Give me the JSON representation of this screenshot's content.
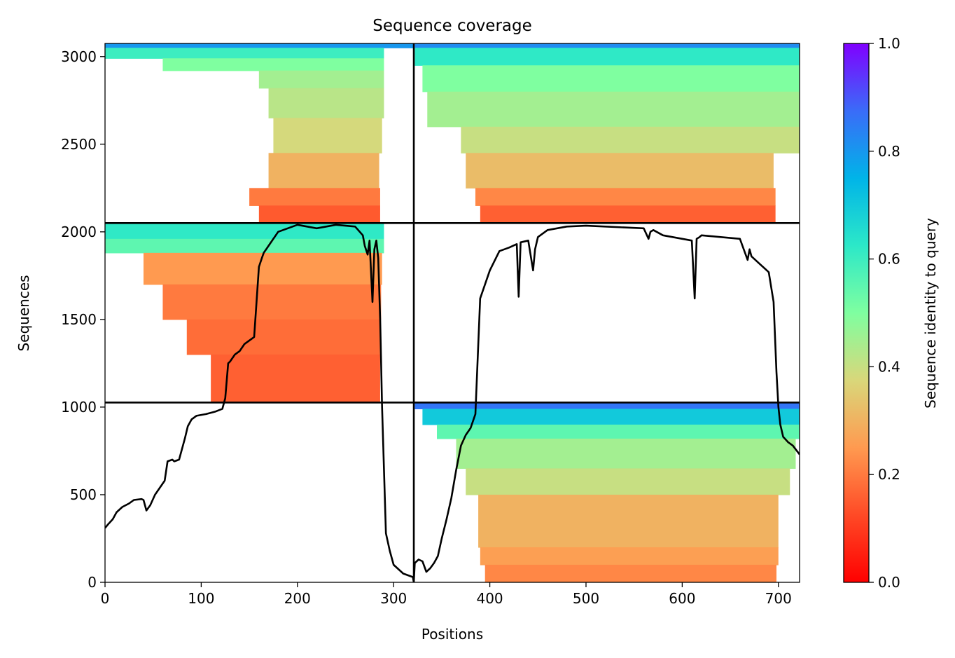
{
  "chart_data": {
    "type": "heatmap",
    "title": "Sequence coverage",
    "xlabel": "Positions",
    "ylabel": "Sequences",
    "xlim": [
      0,
      722
    ],
    "ylim": [
      0,
      3075
    ],
    "xticks": [
      0,
      100,
      200,
      300,
      400,
      500,
      600,
      700
    ],
    "yticks": [
      0,
      500,
      1000,
      1500,
      2000,
      2500,
      3000
    ],
    "grid": false,
    "colormap": "rainbow_r",
    "colorbar": {
      "label": "Sequence identity to query",
      "range": [
        0,
        1
      ],
      "ticks": [
        0.0,
        0.2,
        0.4,
        0.6,
        0.8,
        1.0
      ],
      "tick_labels": [
        "0.0",
        "0.2",
        "0.4",
        "0.6",
        "0.8",
        "1.0"
      ]
    },
    "separators": {
      "vertical_x": [
        321
      ],
      "horizontal_y": [
        1026,
        2050
      ]
    },
    "blocks": [
      {
        "name": "chain1-self",
        "x": [
          0,
          321
        ],
        "y": [
          2050,
          3075
        ],
        "bands": [
          {
            "y": [
              3050,
              3075
            ],
            "start": 0,
            "end": 321,
            "identity": 0.8
          },
          {
            "y": [
              2990,
              3050
            ],
            "start": 0,
            "end": 290,
            "identity": 0.6
          },
          {
            "y": [
              2920,
              2990
            ],
            "start": 60,
            "end": 290,
            "identity": 0.5
          },
          {
            "y": [
              2820,
              2920
            ],
            "start": 160,
            "end": 290,
            "identity": 0.45
          },
          {
            "y": [
              2650,
              2820
            ],
            "start": 170,
            "end": 290,
            "identity": 0.42
          },
          {
            "y": [
              2450,
              2650
            ],
            "start": 175,
            "end": 288,
            "identity": 0.38
          },
          {
            "y": [
              2250,
              2450
            ],
            "start": 170,
            "end": 285,
            "identity": 0.3
          },
          {
            "y": [
              2150,
              2250
            ],
            "start": 150,
            "end": 286,
            "identity": 0.2
          },
          {
            "y": [
              2050,
              2150
            ],
            "start": 160,
            "end": 286,
            "identity": 0.15
          }
        ]
      },
      {
        "name": "chain2-into-chain1",
        "x": [
          322,
          722
        ],
        "y": [
          2050,
          3075
        ],
        "bands": [
          {
            "y": [
              3050,
              3075
            ],
            "start": 322,
            "end": 722,
            "identity": 0.82
          },
          {
            "y": [
              2950,
              3050
            ],
            "start": 322,
            "end": 722,
            "identity": 0.62
          },
          {
            "y": [
              2800,
              2950
            ],
            "start": 330,
            "end": 722,
            "identity": 0.5
          },
          {
            "y": [
              2600,
              2800
            ],
            "start": 335,
            "end": 722,
            "identity": 0.45
          },
          {
            "y": [
              2450,
              2600
            ],
            "start": 370,
            "end": 722,
            "identity": 0.4
          },
          {
            "y": [
              2250,
              2450
            ],
            "start": 375,
            "end": 695,
            "identity": 0.32
          },
          {
            "y": [
              2150,
              2250
            ],
            "start": 385,
            "end": 697,
            "identity": 0.22
          },
          {
            "y": [
              2050,
              2150
            ],
            "start": 390,
            "end": 697,
            "identity": 0.16
          }
        ]
      },
      {
        "name": "chain1-pair-block",
        "x": [
          0,
          321
        ],
        "y": [
          1026,
          2050
        ],
        "bands": [
          {
            "y": [
              1960,
              2050
            ],
            "start": 0,
            "end": 290,
            "identity": 0.62
          },
          {
            "y": [
              1880,
              1960
            ],
            "start": 0,
            "end": 290,
            "identity": 0.55
          },
          {
            "y": [
              1700,
              1880
            ],
            "start": 40,
            "end": 288,
            "identity": 0.25
          },
          {
            "y": [
              1500,
              1700
            ],
            "start": 60,
            "end": 287,
            "identity": 0.2
          },
          {
            "y": [
              1300,
              1500
            ],
            "start": 85,
            "end": 286,
            "identity": 0.18
          },
          {
            "y": [
              1026,
              1300
            ],
            "start": 110,
            "end": 286,
            "identity": 0.16
          }
        ]
      },
      {
        "name": "chain2-self",
        "x": [
          322,
          722
        ],
        "y": [
          0,
          1026
        ],
        "bands": [
          {
            "y": [
              990,
              1026
            ],
            "start": 322,
            "end": 722,
            "identity": 0.86
          },
          {
            "y": [
              900,
              990
            ],
            "start": 330,
            "end": 722,
            "identity": 0.7
          },
          {
            "y": [
              820,
              900
            ],
            "start": 345,
            "end": 722,
            "identity": 0.55
          },
          {
            "y": [
              650,
              820
            ],
            "start": 365,
            "end": 718,
            "identity": 0.45
          },
          {
            "y": [
              500,
              650
            ],
            "start": 375,
            "end": 712,
            "identity": 0.4
          },
          {
            "y": [
              200,
              500
            ],
            "start": 388,
            "end": 700,
            "identity": 0.3
          },
          {
            "y": [
              100,
              200
            ],
            "start": 390,
            "end": 700,
            "identity": 0.26
          },
          {
            "y": [
              0,
              100
            ],
            "start": 395,
            "end": 698,
            "identity": 0.22
          }
        ]
      }
    ],
    "coverage_line": {
      "x": [
        0,
        3,
        8,
        12,
        18,
        25,
        30,
        38,
        40,
        43,
        47,
        52,
        57,
        62,
        65,
        70,
        72,
        77,
        80,
        83,
        86,
        90,
        95,
        105,
        115,
        122,
        125,
        128,
        130,
        135,
        140,
        145,
        150,
        155,
        160,
        163,
        165,
        170,
        180,
        200,
        220,
        240,
        260,
        268,
        270,
        273,
        275,
        278,
        280,
        282,
        284,
        286,
        288,
        292,
        296,
        300,
        310,
        320,
        321,
        322,
        326,
        330,
        334,
        338,
        342,
        346,
        350,
        355,
        360,
        365,
        370,
        375,
        380,
        385,
        390,
        395,
        400,
        410,
        420,
        428,
        430,
        432,
        440,
        445,
        447,
        450,
        460,
        480,
        500,
        520,
        540,
        560,
        565,
        567,
        570,
        580,
        600,
        610,
        613,
        615,
        618,
        620,
        640,
        660,
        668,
        670,
        672,
        680,
        690,
        695,
        698,
        700,
        702,
        705,
        710,
        715,
        722
      ],
      "y": [
        310,
        330,
        360,
        400,
        430,
        450,
        470,
        475,
        470,
        410,
        440,
        500,
        540,
        580,
        690,
        700,
        690,
        700,
        760,
        820,
        890,
        930,
        950,
        960,
        975,
        990,
        1050,
        1250,
        1260,
        1300,
        1320,
        1360,
        1380,
        1400,
        1800,
        1850,
        1880,
        1920,
        2000,
        2040,
        2020,
        2040,
        2030,
        1980,
        1920,
        1870,
        1950,
        1600,
        1900,
        1950,
        1850,
        1500,
        1000,
        280,
        180,
        100,
        50,
        30,
        0,
        110,
        130,
        120,
        60,
        80,
        110,
        150,
        250,
        360,
        480,
        640,
        780,
        840,
        880,
        960,
        1620,
        1700,
        1780,
        1890,
        1910,
        1930,
        1630,
        1940,
        1950,
        1780,
        1900,
        1970,
        2010,
        2030,
        2035,
        2030,
        2025,
        2020,
        1960,
        2000,
        2010,
        1980,
        1960,
        1950,
        1620,
        1960,
        1970,
        1980,
        1970,
        1960,
        1840,
        1900,
        1860,
        1820,
        1770,
        1600,
        1200,
        1000,
        900,
        830,
        800,
        780,
        730
      ]
    }
  }
}
